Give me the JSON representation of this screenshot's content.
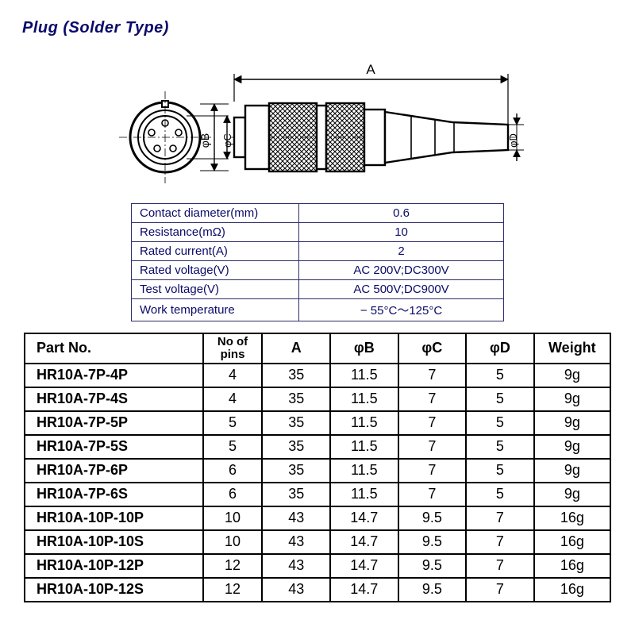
{
  "title": "Plug  (Solder  Type)",
  "diagram": {
    "labels": {
      "A": "A",
      "phiB": "φB",
      "phiC": "φC",
      "phiD": "φD"
    },
    "stroke": "#000000",
    "hatch": "#000000",
    "bg": "#ffffff"
  },
  "specs": {
    "border_color": "#2b2b6b",
    "text_color": "#0a0a6a",
    "rows": [
      {
        "label": "Contact diameter(mm)",
        "value": "0.6"
      },
      {
        "label": "Resistance(mΩ)",
        "value": "10"
      },
      {
        "label": "Rated current(A)",
        "value": "2"
      },
      {
        "label": "Rated voltage(V)",
        "value": "AC 200V;DC300V"
      },
      {
        "label": "Test voltage(V)",
        "value": "AC 500V;DC900V"
      },
      {
        "label": "Work temperature",
        "value": "− 55°C～125°C"
      }
    ]
  },
  "parts": {
    "border_color": "#000000",
    "headers": {
      "partno": "Part No.",
      "pins": "No of pins",
      "A": "A",
      "phiB": "φB",
      "phiC": "φC",
      "phiD": "φD",
      "weight": "Weight"
    },
    "rows": [
      {
        "partno": "HR10A-7P-4P",
        "pins": "4",
        "A": "35",
        "phiB": "11.5",
        "phiC": "7",
        "phiD": "5",
        "weight": "9g"
      },
      {
        "partno": "HR10A-7P-4S",
        "pins": "4",
        "A": "35",
        "phiB": "11.5",
        "phiC": "7",
        "phiD": "5",
        "weight": "9g"
      },
      {
        "partno": "HR10A-7P-5P",
        "pins": "5",
        "A": "35",
        "phiB": "11.5",
        "phiC": "7",
        "phiD": "5",
        "weight": "9g"
      },
      {
        "partno": "HR10A-7P-5S",
        "pins": "5",
        "A": "35",
        "phiB": "11.5",
        "phiC": "7",
        "phiD": "5",
        "weight": "9g"
      },
      {
        "partno": "HR10A-7P-6P",
        "pins": "6",
        "A": "35",
        "phiB": "11.5",
        "phiC": "7",
        "phiD": "5",
        "weight": "9g"
      },
      {
        "partno": "HR10A-7P-6S",
        "pins": "6",
        "A": "35",
        "phiB": "11.5",
        "phiC": "7",
        "phiD": "5",
        "weight": "9g"
      },
      {
        "partno": "HR10A-10P-10P",
        "pins": "10",
        "A": "43",
        "phiB": "14.7",
        "phiC": "9.5",
        "phiD": "7",
        "weight": "16g"
      },
      {
        "partno": "HR10A-10P-10S",
        "pins": "10",
        "A": "43",
        "phiB": "14.7",
        "phiC": "9.5",
        "phiD": "7",
        "weight": "16g"
      },
      {
        "partno": "HR10A-10P-12P",
        "pins": "12",
        "A": "43",
        "phiB": "14.7",
        "phiC": "9.5",
        "phiD": "7",
        "weight": "16g"
      },
      {
        "partno": "HR10A-10P-12S",
        "pins": "12",
        "A": "43",
        "phiB": "14.7",
        "phiC": "9.5",
        "phiD": "7",
        "weight": "16g"
      }
    ]
  }
}
